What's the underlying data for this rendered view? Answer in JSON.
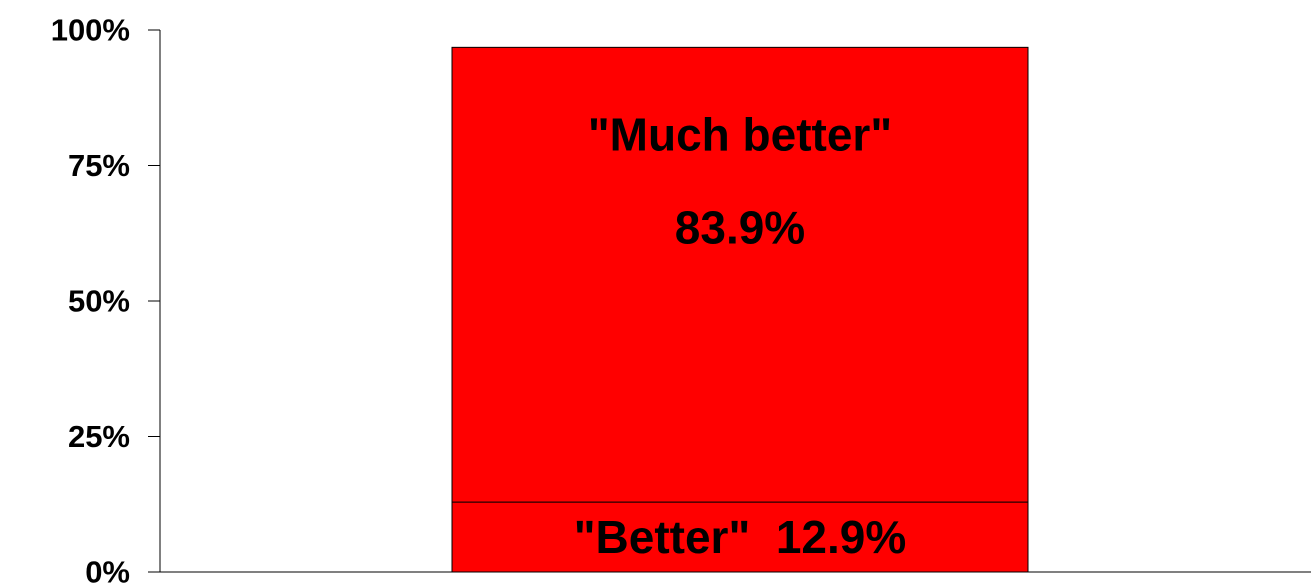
{
  "chart_data": {
    "type": "bar",
    "stacked": true,
    "categories": [
      ""
    ],
    "series": [
      {
        "values": [
          12.9
        ],
        "label_lines": [
          "\"Better\"  12.9%"
        ]
      },
      {
        "values": [
          83.9
        ],
        "label_lines": [
          "\"Much better\"",
          "83.9%"
        ]
      }
    ],
    "ylim": [
      0,
      100
    ],
    "yticks": [
      0,
      25,
      50,
      75,
      100
    ],
    "ytick_labels": [
      "0%",
      "25%",
      "50%",
      "75%",
      "100%"
    ],
    "grid": false,
    "legend": "none",
    "title": "",
    "xlabel": "",
    "ylabel": ""
  },
  "colors": {
    "bar_fill": "#ff0000",
    "bar_stroke": "#000000",
    "axis": "#000000"
  }
}
